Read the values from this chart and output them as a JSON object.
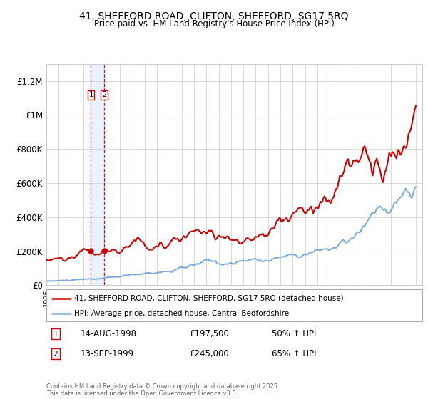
{
  "title": "41, SHEFFORD ROAD, CLIFTON, SHEFFORD, SG17 5RQ",
  "subtitle": "Price paid vs. HM Land Registry's House Price Index (HPI)",
  "legend_line1": "41, SHEFFORD ROAD, CLIFTON, SHEFFORD, SG17 5RQ (detached house)",
  "legend_line2": "HPI: Average price, detached house, Central Bedfordshire",
  "transaction1_label": "1",
  "transaction1_date": "14-AUG-1998",
  "transaction1_price": "£197,500",
  "transaction1_hpi": "50% ↑ HPI",
  "transaction2_label": "2",
  "transaction2_date": "13-SEP-1999",
  "transaction2_price": "£245,000",
  "transaction2_hpi": "65% ↑ HPI",
  "copyright": "Contains HM Land Registry data © Crown copyright and database right 2025.\nThis data is licensed under the Open Government Licence v3.0.",
  "property_color": "#cc0000",
  "hpi_color": "#7aaadd",
  "vline_color": "#cc0000",
  "shade_color": "#ddeeff",
  "background_color": "#ffffff",
  "ylim": [
    0,
    1300000
  ],
  "yticks": [
    0,
    200000,
    400000,
    600000,
    800000,
    1000000,
    1200000
  ],
  "ytick_labels": [
    "£0",
    "£200K",
    "£400K",
    "£600K",
    "£800K",
    "£1M",
    "£1.2M"
  ],
  "xstart_year": 1995,
  "xend_year": 2025
}
